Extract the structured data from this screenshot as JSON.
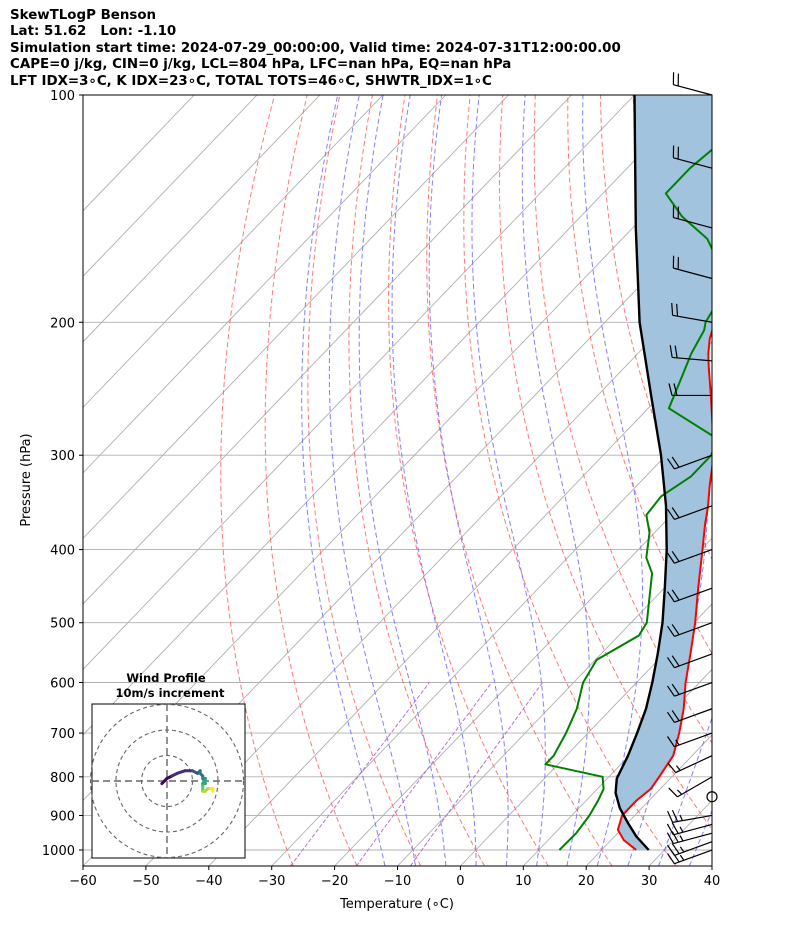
{
  "header": {
    "title_line1": "SkewTLogP Benson",
    "title_line2": "Lat: 51.62   Lon: -1.10",
    "title_line3": "Simulation start time: 2024-07-29_00:00:00, Valid time: 2024-07-31T12:00:00.00",
    "title_line4": "CAPE=0 j/kg, CIN=0 j/kg, LCL=804 hPa, LFC=nan hPa, EQ=nan hPa",
    "title_line5": "LFT IDX=3∘C, K IDX=23∘C, TOTAL TOTS=46∘C, SHWTR_IDX=1∘C"
  },
  "chart_data": {
    "type": "line",
    "subtype": "skew-T log-P",
    "xlabel": "Temperature (∘C)",
    "ylabel": "Pressure (hPa)",
    "xlim": [
      -60,
      40
    ],
    "ylim": [
      1050,
      100
    ],
    "x_scale": "linear (skewed)",
    "y_scale": "log",
    "grid": true,
    "x_ticks": [
      -60,
      -50,
      -40,
      -30,
      -20,
      -10,
      0,
      10,
      20,
      30,
      40
    ],
    "y_ticks": [
      100,
      200,
      300,
      400,
      500,
      600,
      700,
      800,
      900,
      1000
    ],
    "colors": {
      "temperature": "#ff0000",
      "dewpoint": "#008000",
      "parcel": "#000000",
      "cape_fill": "#a1c3dd",
      "dry_adiabats": "#ff6060",
      "moist_adiabats": "#6b6bff",
      "mixing_ratio": "#b060d0",
      "isotherms": "#b0b0b0"
    },
    "series": [
      {
        "id": "temperature",
        "points": [
          [
            1000,
            25.5
          ],
          [
            970,
            22.0
          ],
          [
            940,
            19.5
          ],
          [
            900,
            18.0
          ],
          [
            860,
            18.0
          ],
          [
            830,
            18.5
          ],
          [
            800,
            18.0
          ],
          [
            750,
            17.0
          ],
          [
            700,
            14.5
          ],
          [
            650,
            11.5
          ],
          [
            600,
            7.8
          ],
          [
            550,
            4.2
          ],
          [
            500,
            0.2
          ],
          [
            450,
            -4.6
          ],
          [
            400,
            -9.8
          ],
          [
            370,
            -13.3
          ],
          [
            350,
            -15.6
          ],
          [
            330,
            -18.3
          ],
          [
            300,
            -22.4
          ],
          [
            280,
            -26.0
          ],
          [
            250,
            -32.0
          ],
          [
            230,
            -36.5
          ],
          [
            220,
            -38.8
          ],
          [
            210,
            -40.9
          ],
          [
            200,
            -42.5
          ],
          [
            190,
            -43.3
          ],
          [
            180,
            -43.8
          ],
          [
            170,
            -45.2
          ],
          [
            160,
            -47.5
          ],
          [
            150,
            -50.2
          ],
          [
            140,
            -53.5
          ],
          [
            135,
            -55.3
          ],
          [
            130,
            -56.4
          ],
          [
            120,
            -57.6
          ],
          [
            110,
            -58.9
          ],
          [
            100,
            -60.0
          ]
        ]
      },
      {
        "id": "dewpoint",
        "points": [
          [
            1000,
            13.3
          ],
          [
            950,
            13.4
          ],
          [
            900,
            12.8
          ],
          [
            860,
            11.9
          ],
          [
            830,
            11.0
          ],
          [
            800,
            9.0
          ],
          [
            770,
            -2.0
          ],
          [
            750,
            -2.0
          ],
          [
            700,
            -3.5
          ],
          [
            650,
            -5.5
          ],
          [
            600,
            -8.5
          ],
          [
            560,
            -9.8
          ],
          [
            520,
            -6.8
          ],
          [
            500,
            -7.5
          ],
          [
            460,
            -11.2
          ],
          [
            430,
            -14.2
          ],
          [
            410,
            -17.5
          ],
          [
            380,
            -20.8
          ],
          [
            360,
            -24.0
          ],
          [
            340,
            -24.5
          ],
          [
            320,
            -22.8
          ],
          [
            300,
            -22.8
          ],
          [
            285,
            -24.5
          ],
          [
            260,
            -36.7
          ],
          [
            240,
            -39.0
          ],
          [
            220,
            -41.5
          ],
          [
            205,
            -43.0
          ],
          [
            200,
            -44.0
          ],
          [
            185,
            -45.5
          ],
          [
            175,
            -48.8
          ],
          [
            165,
            -51.8
          ],
          [
            155,
            -56.5
          ],
          [
            145,
            -63.8
          ],
          [
            135,
            -70.0
          ],
          [
            125,
            -70.0
          ],
          [
            115,
            -69.0
          ],
          [
            100,
            -68.0
          ]
        ]
      },
      {
        "id": "parcel",
        "points": [
          [
            1000,
            27.5
          ],
          [
            960,
            23.5
          ],
          [
            920,
            20.0
          ],
          [
            880,
            16.5
          ],
          [
            840,
            13.5
          ],
          [
            804,
            11.5
          ],
          [
            750,
            9.8
          ],
          [
            700,
            7.8
          ],
          [
            650,
            5.5
          ],
          [
            600,
            2.5
          ],
          [
            550,
            -1.0
          ],
          [
            500,
            -5.0
          ],
          [
            450,
            -9.9
          ],
          [
            400,
            -15.5
          ],
          [
            350,
            -22.3
          ],
          [
            300,
            -30.8
          ],
          [
            250,
            -41.5
          ],
          [
            200,
            -54.5
          ],
          [
            150,
            -69.5
          ],
          [
            100,
            -90.0
          ]
        ]
      }
    ],
    "wind_barbs": [
      {
        "p": 1000,
        "spd_kt": 25,
        "dir_deg": 250
      },
      {
        "p": 975,
        "spd_kt": 25,
        "dir_deg": 250
      },
      {
        "p": 950,
        "spd_kt": 25,
        "dir_deg": 255
      },
      {
        "p": 925,
        "spd_kt": 25,
        "dir_deg": 255
      },
      {
        "p": 900,
        "spd_kt": 25,
        "dir_deg": 260
      },
      {
        "p": 850,
        "spd_kt": 0,
        "dir_deg": 0
      },
      {
        "p": 800,
        "spd_kt": 15,
        "dir_deg": 240
      },
      {
        "p": 750,
        "spd_kt": 15,
        "dir_deg": 245
      },
      {
        "p": 700,
        "spd_kt": 15,
        "dir_deg": 250
      },
      {
        "p": 650,
        "spd_kt": 20,
        "dir_deg": 250
      },
      {
        "p": 600,
        "spd_kt": 20,
        "dir_deg": 250
      },
      {
        "p": 550,
        "spd_kt": 20,
        "dir_deg": 250
      },
      {
        "p": 500,
        "spd_kt": 20,
        "dir_deg": 250
      },
      {
        "p": 450,
        "spd_kt": 20,
        "dir_deg": 250
      },
      {
        "p": 400,
        "spd_kt": 20,
        "dir_deg": 250
      },
      {
        "p": 350,
        "spd_kt": 20,
        "dir_deg": 250
      },
      {
        "p": 300,
        "spd_kt": 20,
        "dir_deg": 250
      },
      {
        "p": 250,
        "spd_kt": 20,
        "dir_deg": 270
      },
      {
        "p": 225,
        "spd_kt": 20,
        "dir_deg": 275
      },
      {
        "p": 200,
        "spd_kt": 20,
        "dir_deg": 280
      },
      {
        "p": 175,
        "spd_kt": 20,
        "dir_deg": 285
      },
      {
        "p": 150,
        "spd_kt": 20,
        "dir_deg": 285
      },
      {
        "p": 125,
        "spd_kt": 20,
        "dir_deg": 285
      },
      {
        "p": 100,
        "spd_kt": 20,
        "dir_deg": 285
      }
    ],
    "hodograph": {
      "title": "Wind Profile",
      "subtitle": "10m/s increment",
      "ring_step_ms": 10,
      "rings": 3,
      "points": [
        [
          -2,
          -1
        ],
        [
          -1,
          0
        ],
        [
          0,
          1
        ],
        [
          2,
          2
        ],
        [
          4,
          3
        ],
        [
          7,
          4
        ],
        [
          10,
          4
        ],
        [
          12,
          3
        ],
        [
          13,
          4
        ],
        [
          13,
          3
        ],
        [
          14,
          2
        ],
        [
          14,
          1
        ],
        [
          15,
          1
        ],
        [
          15,
          0
        ],
        [
          15,
          -1
        ],
        [
          14,
          -1
        ],
        [
          14,
          -2
        ],
        [
          14,
          -3
        ],
        [
          14,
          -4
        ],
        [
          15,
          -4
        ],
        [
          16,
          -3
        ],
        [
          17,
          -3
        ],
        [
          18,
          -3
        ],
        [
          18,
          -4
        ]
      ]
    }
  }
}
